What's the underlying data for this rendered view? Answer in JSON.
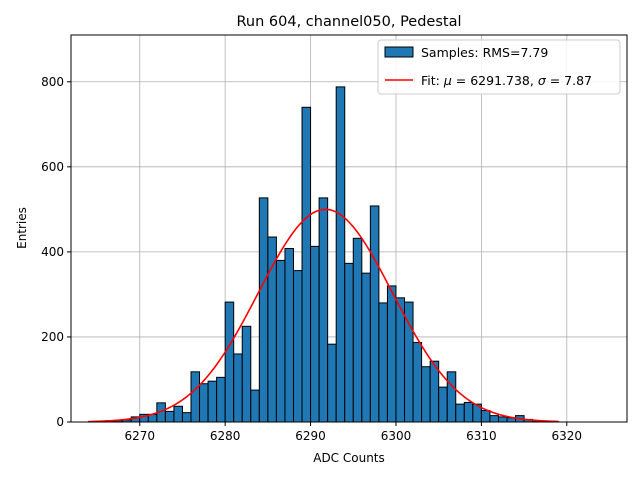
{
  "chart_data": {
    "type": "bar",
    "title": "Run 604, channel050, Pedestal",
    "xlabel": "ADC Counts",
    "ylabel": "Entries",
    "xlim": [
      6261.95,
      6327.05
    ],
    "ylim": [
      0,
      910
    ],
    "xticks": [
      6270,
      6280,
      6290,
      6300,
      6310,
      6320
    ],
    "yticks": [
      0,
      200,
      400,
      600,
      800
    ],
    "grid": true,
    "legend_position": "top-right",
    "colors": {
      "bar_fill": "#1f77b4",
      "bar_edge": "#000000",
      "fit_line": "#ff0000",
      "grid": "#b0b0b0"
    },
    "series": [
      {
        "name": "Samples: RMS=7.79",
        "kind": "histogram",
        "bin_width": 1,
        "bin_starts": [
          6264,
          6265,
          6266,
          6267,
          6268,
          6269,
          6270,
          6271,
          6272,
          6273,
          6274,
          6275,
          6276,
          6277,
          6278,
          6279,
          6280,
          6281,
          6282,
          6283,
          6284,
          6285,
          6286,
          6287,
          6288,
          6289,
          6290,
          6291,
          6292,
          6293,
          6294,
          6295,
          6296,
          6297,
          6298,
          6299,
          6300,
          6301,
          6302,
          6303,
          6304,
          6305,
          6306,
          6307,
          6308,
          6309,
          6310,
          6311,
          6312,
          6313,
          6314,
          6315,
          6316,
          6317,
          6318
        ],
        "values": [
          1,
          1,
          2,
          3,
          5,
          12,
          18,
          18,
          45,
          25,
          37,
          22,
          118,
          90,
          96,
          105,
          282,
          160,
          225,
          75,
          527,
          435,
          380,
          408,
          356,
          740,
          413,
          527,
          183,
          788,
          373,
          432,
          350,
          508,
          280,
          320,
          292,
          282,
          187,
          130,
          143,
          82,
          118,
          42,
          46,
          42,
          27,
          15,
          12,
          10,
          15,
          6,
          3,
          2,
          1
        ]
      },
      {
        "name_prefix": "Fit: ",
        "name_mu": "μ",
        "name_mid": " = 6291.738, ",
        "name_sigma": "σ",
        "name_suffix": " = 7.87",
        "kind": "gaussian_fit",
        "mu": 6291.738,
        "sigma": 7.87,
        "amplitude": 500,
        "x_range": [
          6264,
          6319
        ]
      }
    ]
  }
}
